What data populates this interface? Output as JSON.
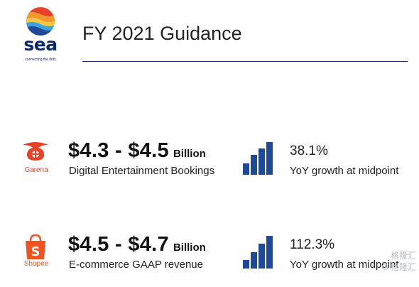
{
  "header": {
    "logo_word": "sea",
    "logo_tagline": "connecting the dots",
    "title": "FY 2021 Guidance"
  },
  "rows": [
    {
      "brand": "Garena",
      "brand_icon": "garena-logo-icon",
      "range": "$4.3 - $4.5",
      "unit": "Billion",
      "metric": "Digital Entertainment Bookings",
      "growth": "38.1%",
      "growth_label": "YoY growth at midpoint",
      "bar_levels": [
        0.35,
        0.6,
        0.8,
        1.0
      ]
    },
    {
      "brand": "Shopee",
      "brand_icon": "shopee-bag-icon",
      "range": "$4.5 - $4.7",
      "unit": "Billion",
      "metric": "E-commerce GAAP revenue",
      "growth": "112.3%",
      "growth_label": "YoY growth at midpoint",
      "bar_levels": [
        0.25,
        0.5,
        0.75,
        1.0
      ]
    }
  ],
  "watermark": {
    "line1": "格隆汇",
    "line2": "G 格隆汇"
  },
  "colors": {
    "brand_navy": "#0b2a6b",
    "bar_blue": "#1f4a9a",
    "garena_red": "#e8412a",
    "shopee_orange": "#f0531f"
  }
}
